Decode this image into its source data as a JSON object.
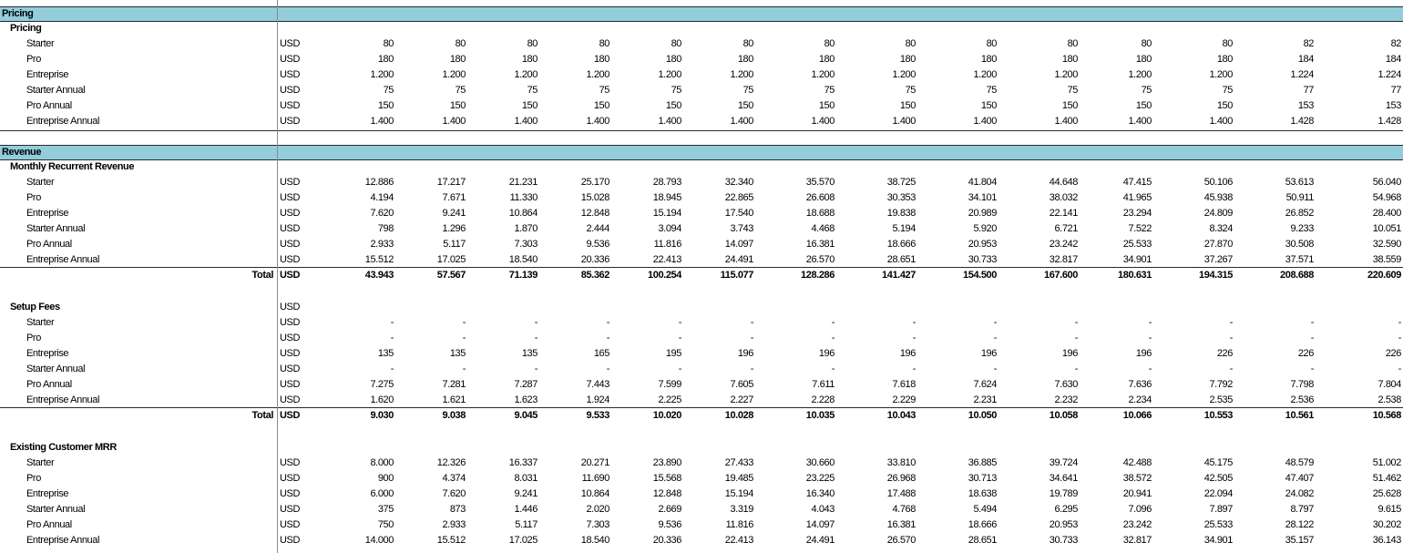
{
  "sheet": {
    "sections": [
      {
        "title": "Pricing",
        "groups": [
          {
            "title": "Pricing",
            "rows": [
              {
                "label": "Starter",
                "unit": "USD",
                "values": [
                  "80",
                  "80",
                  "80",
                  "80",
                  "80",
                  "80",
                  "80",
                  "80",
                  "80",
                  "80",
                  "80",
                  "80",
                  "82",
                  "82"
                ]
              },
              {
                "label": "Pro",
                "unit": "USD",
                "values": [
                  "180",
                  "180",
                  "180",
                  "180",
                  "180",
                  "180",
                  "180",
                  "180",
                  "180",
                  "180",
                  "180",
                  "180",
                  "184",
                  "184"
                ]
              },
              {
                "label": "Entreprise",
                "unit": "USD",
                "values": [
                  "1.200",
                  "1.200",
                  "1.200",
                  "1.200",
                  "1.200",
                  "1.200",
                  "1.200",
                  "1.200",
                  "1.200",
                  "1.200",
                  "1.200",
                  "1.200",
                  "1.224",
                  "1.224"
                ]
              },
              {
                "label": "Starter Annual",
                "unit": "USD",
                "values": [
                  "75",
                  "75",
                  "75",
                  "75",
                  "75",
                  "75",
                  "75",
                  "75",
                  "75",
                  "75",
                  "75",
                  "75",
                  "77",
                  "77"
                ]
              },
              {
                "label": "Pro Annual",
                "unit": "USD",
                "values": [
                  "150",
                  "150",
                  "150",
                  "150",
                  "150",
                  "150",
                  "150",
                  "150",
                  "150",
                  "150",
                  "150",
                  "150",
                  "153",
                  "153"
                ]
              },
              {
                "label": "Entreprise Annual",
                "unit": "USD",
                "values": [
                  "1.400",
                  "1.400",
                  "1.400",
                  "1.400",
                  "1.400",
                  "1.400",
                  "1.400",
                  "1.400",
                  "1.400",
                  "1.400",
                  "1.400",
                  "1.400",
                  "1.428",
                  "1.428"
                ]
              }
            ]
          }
        ]
      },
      {
        "title": "Revenue",
        "groups": [
          {
            "title": "Monthly Recurrent Revenue",
            "rows": [
              {
                "label": "Starter",
                "unit": "USD",
                "values": [
                  "12.886",
                  "17.217",
                  "21.231",
                  "25.170",
                  "28.793",
                  "32.340",
                  "35.570",
                  "38.725",
                  "41.804",
                  "44.648",
                  "47.415",
                  "50.106",
                  "53.613",
                  "56.040"
                ]
              },
              {
                "label": "Pro",
                "unit": "USD",
                "values": [
                  "4.194",
                  "7.671",
                  "11.330",
                  "15.028",
                  "18.945",
                  "22.865",
                  "26.608",
                  "30.353",
                  "34.101",
                  "38.032",
                  "41.965",
                  "45.938",
                  "50.911",
                  "54.968"
                ]
              },
              {
                "label": "Entreprise",
                "unit": "USD",
                "values": [
                  "7.620",
                  "9.241",
                  "10.864",
                  "12.848",
                  "15.194",
                  "17.540",
                  "18.688",
                  "19.838",
                  "20.989",
                  "22.141",
                  "23.294",
                  "24.809",
                  "26.852",
                  "28.400"
                ]
              },
              {
                "label": "Starter Annual",
                "unit": "USD",
                "values": [
                  "798",
                  "1.296",
                  "1.870",
                  "2.444",
                  "3.094",
                  "3.743",
                  "4.468",
                  "5.194",
                  "5.920",
                  "6.721",
                  "7.522",
                  "8.324",
                  "9.233",
                  "10.051"
                ]
              },
              {
                "label": "Pro Annual",
                "unit": "USD",
                "values": [
                  "2.933",
                  "5.117",
                  "7.303",
                  "9.536",
                  "11.816",
                  "14.097",
                  "16.381",
                  "18.666",
                  "20.953",
                  "23.242",
                  "25.533",
                  "27.870",
                  "30.508",
                  "32.590"
                ]
              },
              {
                "label": "Entreprise Annual",
                "unit": "USD",
                "values": [
                  "15.512",
                  "17.025",
                  "18.540",
                  "20.336",
                  "22.413",
                  "24.491",
                  "26.570",
                  "28.651",
                  "30.733",
                  "32.817",
                  "34.901",
                  "37.267",
                  "37.571",
                  "38.559"
                ]
              }
            ],
            "total": {
              "label": "Total",
              "unit": "USD",
              "values": [
                "43.943",
                "57.567",
                "71.139",
                "85.362",
                "100.254",
                "115.077",
                "128.286",
                "141.427",
                "154.500",
                "167.600",
                "180.631",
                "194.315",
                "208.688",
                "220.609"
              ]
            }
          },
          {
            "title": "Setup Fees",
            "unit": "USD",
            "rows": [
              {
                "label": "Starter",
                "unit": "USD",
                "values": [
                  "-",
                  "-",
                  "-",
                  "-",
                  "-",
                  "-",
                  "-",
                  "-",
                  "-",
                  "-",
                  "-",
                  "-",
                  "-",
                  "-"
                ]
              },
              {
                "label": "Pro",
                "unit": "USD",
                "values": [
                  "-",
                  "-",
                  "-",
                  "-",
                  "-",
                  "-",
                  "-",
                  "-",
                  "-",
                  "-",
                  "-",
                  "-",
                  "-",
                  "-"
                ]
              },
              {
                "label": "Entreprise",
                "unit": "USD",
                "values": [
                  "135",
                  "135",
                  "135",
                  "165",
                  "195",
                  "196",
                  "196",
                  "196",
                  "196",
                  "196",
                  "196",
                  "226",
                  "226",
                  "226"
                ]
              },
              {
                "label": "Starter Annual",
                "unit": "USD",
                "values": [
                  "-",
                  "-",
                  "-",
                  "-",
                  "-",
                  "-",
                  "-",
                  "-",
                  "-",
                  "-",
                  "-",
                  "-",
                  "-",
                  "-"
                ]
              },
              {
                "label": "Pro Annual",
                "unit": "USD",
                "values": [
                  "7.275",
                  "7.281",
                  "7.287",
                  "7.443",
                  "7.599",
                  "7.605",
                  "7.611",
                  "7.618",
                  "7.624",
                  "7.630",
                  "7.636",
                  "7.792",
                  "7.798",
                  "7.804"
                ]
              },
              {
                "label": "Entreprise Annual",
                "unit": "USD",
                "values": [
                  "1.620",
                  "1.621",
                  "1.623",
                  "1.924",
                  "2.225",
                  "2.227",
                  "2.228",
                  "2.229",
                  "2.231",
                  "2.232",
                  "2.234",
                  "2.535",
                  "2.536",
                  "2.538"
                ]
              }
            ],
            "total": {
              "label": "Total",
              "unit": "USD",
              "values": [
                "9.030",
                "9.038",
                "9.045",
                "9.533",
                "10.020",
                "10.028",
                "10.035",
                "10.043",
                "10.050",
                "10.058",
                "10.066",
                "10.553",
                "10.561",
                "10.568"
              ]
            }
          },
          {
            "title": "Existing Customer MRR",
            "rows": [
              {
                "label": "Starter",
                "unit": "USD",
                "values": [
                  "8.000",
                  "12.326",
                  "16.337",
                  "20.271",
                  "23.890",
                  "27.433",
                  "30.660",
                  "33.810",
                  "36.885",
                  "39.724",
                  "42.488",
                  "45.175",
                  "48.579",
                  "51.002"
                ]
              },
              {
                "label": "Pro",
                "unit": "USD",
                "values": [
                  "900",
                  "4.374",
                  "8.031",
                  "11.690",
                  "15.568",
                  "19.485",
                  "23.225",
                  "26.968",
                  "30.713",
                  "34.641",
                  "38.572",
                  "42.505",
                  "47.407",
                  "51.462"
                ]
              },
              {
                "label": "Entreprise",
                "unit": "USD",
                "values": [
                  "6.000",
                  "7.620",
                  "9.241",
                  "10.864",
                  "12.848",
                  "15.194",
                  "16.340",
                  "17.488",
                  "18.638",
                  "19.789",
                  "20.941",
                  "22.094",
                  "24.082",
                  "25.628"
                ]
              },
              {
                "label": "Starter Annual",
                "unit": "USD",
                "values": [
                  "375",
                  "873",
                  "1.446",
                  "2.020",
                  "2.669",
                  "3.319",
                  "4.043",
                  "4.768",
                  "5.494",
                  "6.295",
                  "7.096",
                  "7.897",
                  "8.797",
                  "9.615"
                ]
              },
              {
                "label": "Pro Annual",
                "unit": "USD",
                "values": [
                  "750",
                  "2.933",
                  "5.117",
                  "7.303",
                  "9.536",
                  "11.816",
                  "14.097",
                  "16.381",
                  "18.666",
                  "20.953",
                  "23.242",
                  "25.533",
                  "28.122",
                  "30.202"
                ]
              },
              {
                "label": "Entreprise Annual",
                "unit": "USD",
                "values": [
                  "14.000",
                  "15.512",
                  "17.025",
                  "18.540",
                  "20.336",
                  "22.413",
                  "24.491",
                  "26.570",
                  "28.651",
                  "30.733",
                  "32.817",
                  "34.901",
                  "35.157",
                  "36.143"
                ]
              }
            ]
          }
        ]
      }
    ]
  }
}
